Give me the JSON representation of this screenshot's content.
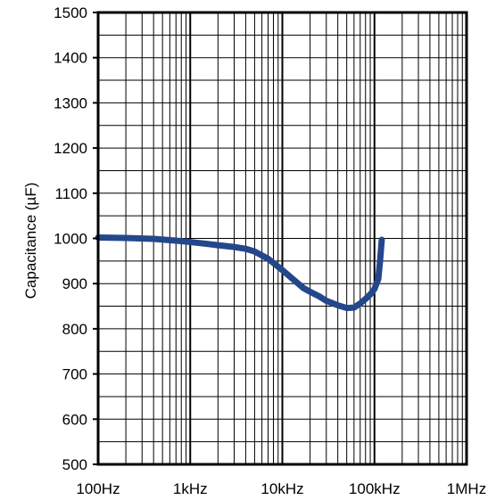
{
  "chart_data": {
    "type": "line",
    "title": "",
    "xlabel": "",
    "ylabel": "Capacitance (µF)",
    "x_scale": "log",
    "xlim": [
      100,
      1000000
    ],
    "ylim": [
      500,
      1500
    ],
    "x_ticks": [
      {
        "value": 100,
        "label": "100Hz"
      },
      {
        "value": 1000,
        "label": "1kHz"
      },
      {
        "value": 10000,
        "label": "10kHz"
      },
      {
        "value": 100000,
        "label": "100kHz"
      },
      {
        "value": 1000000,
        "label": "1MHz"
      }
    ],
    "y_ticks": [
      {
        "value": 500,
        "label": "500"
      },
      {
        "value": 600,
        "label": "600"
      },
      {
        "value": 700,
        "label": "700"
      },
      {
        "value": 800,
        "label": "800"
      },
      {
        "value": 900,
        "label": "900"
      },
      {
        "value": 1000,
        "label": "1000"
      },
      {
        "value": 1100,
        "label": "1100"
      },
      {
        "value": 1200,
        "label": "1200"
      },
      {
        "value": 1300,
        "label": "1300"
      },
      {
        "value": 1400,
        "label": "1400"
      },
      {
        "value": 1500,
        "label": "1500"
      }
    ],
    "grid": true,
    "legend": "none",
    "colors": {
      "series": "#24478c",
      "axis": "#000000",
      "grid": "#000000"
    },
    "series": [
      {
        "x": [
          100,
          200,
          400,
          700,
          1000,
          1500,
          2000,
          3000,
          4000,
          5000,
          7000,
          10000,
          13000,
          17000,
          20000,
          25000,
          30000,
          40000,
          50000,
          60000,
          70000,
          80000,
          90000,
          100000,
          110000,
          115000,
          120000
        ],
        "values": [
          1002,
          1001,
          999,
          995,
          992,
          988,
          985,
          981,
          977,
          971,
          955,
          930,
          910,
          890,
          882,
          872,
          862,
          852,
          846,
          847,
          856,
          866,
          876,
          888,
          910,
          950,
          997
        ]
      }
    ]
  }
}
